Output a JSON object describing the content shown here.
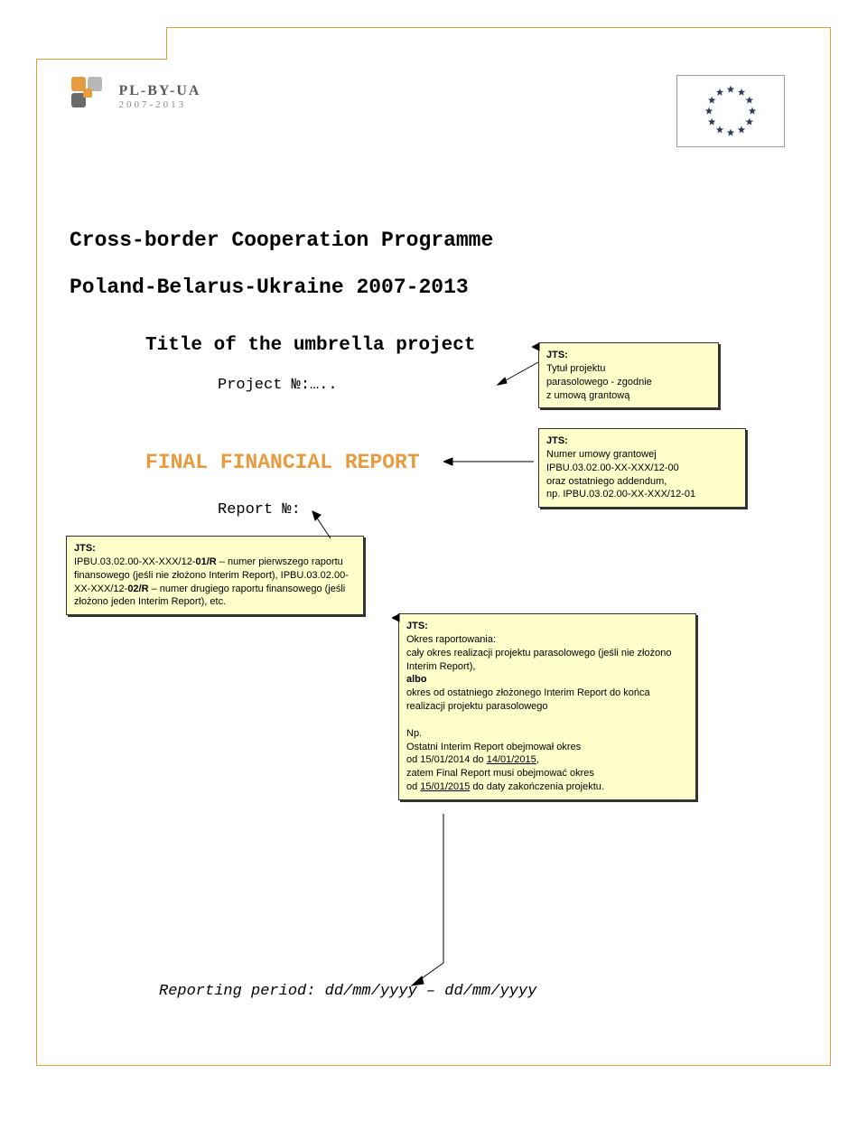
{
  "logo": {
    "main": "PL-BY-UA",
    "sub": "2007-2013",
    "mark_colors": {
      "orange": "#e79b3f",
      "gray": "#b7b7b7",
      "dark": "#6a6a6a"
    }
  },
  "eu_flag": {
    "star_color": "#2d3a5a",
    "star_count": 12,
    "ring_radius": 24,
    "star_size": 4.5
  },
  "headings": {
    "programme_line1": "Cross-border Cooperation Programme",
    "programme_line2": "Poland-Belarus-Ukraine 2007-2013",
    "title_umbrella": "Title of the umbrella project",
    "project_no": "Project №:…..",
    "final_report": "FINAL FINANCIAL REPORT",
    "report_no": "Report №:",
    "reporting_period": "Reporting period: dd/mm/yyyy – dd/mm/yyyy"
  },
  "notes": {
    "n1": {
      "label": "JTS:",
      "body": "Tytuł projektu\nparasolowego - zgodnie\nz umową grantową"
    },
    "n2": {
      "label": "JTS:",
      "body": "Numer umowy grantowej\nIPBU.03.02.00-XX-XXX/12-00\noraz ostatniego addendum,\nnp. IPBU.03.02.00-XX-XXX/12-01"
    },
    "n3": {
      "label": "JTS:",
      "body": "IPBU.03.02.00-XX-XXX/12-01/R – numer pierwszego raportu finansowego (jeśli nie złożono Interim Report), IPBU.03.02.00-XX-XXX/12-02/R – numer drugiego raportu finansowego (jeśli złożono jeden Interim Report), etc."
    },
    "n4": {
      "label": "JTS:",
      "body1": "Okres raportowania:\ncały okres realizacji projektu parasolowego (jeśli nie złożono Interim Report),",
      "body_bold": "albo",
      "body2": "okres od ostatniego złożonego Interim Report do końca realizacji projektu parasolowego",
      "body3": "Np.\nOstatni Interim Report obejmował okres\nod 15/01/2014 do 14/01/2015,\nzatem  Final Report musi obejmować okres\nod 15/01/2015 do daty zakończenia projektu."
    }
  },
  "colors": {
    "page_border": "#e79b3f",
    "note_bg": "#ffffcc",
    "accent": "#e79b3f"
  }
}
